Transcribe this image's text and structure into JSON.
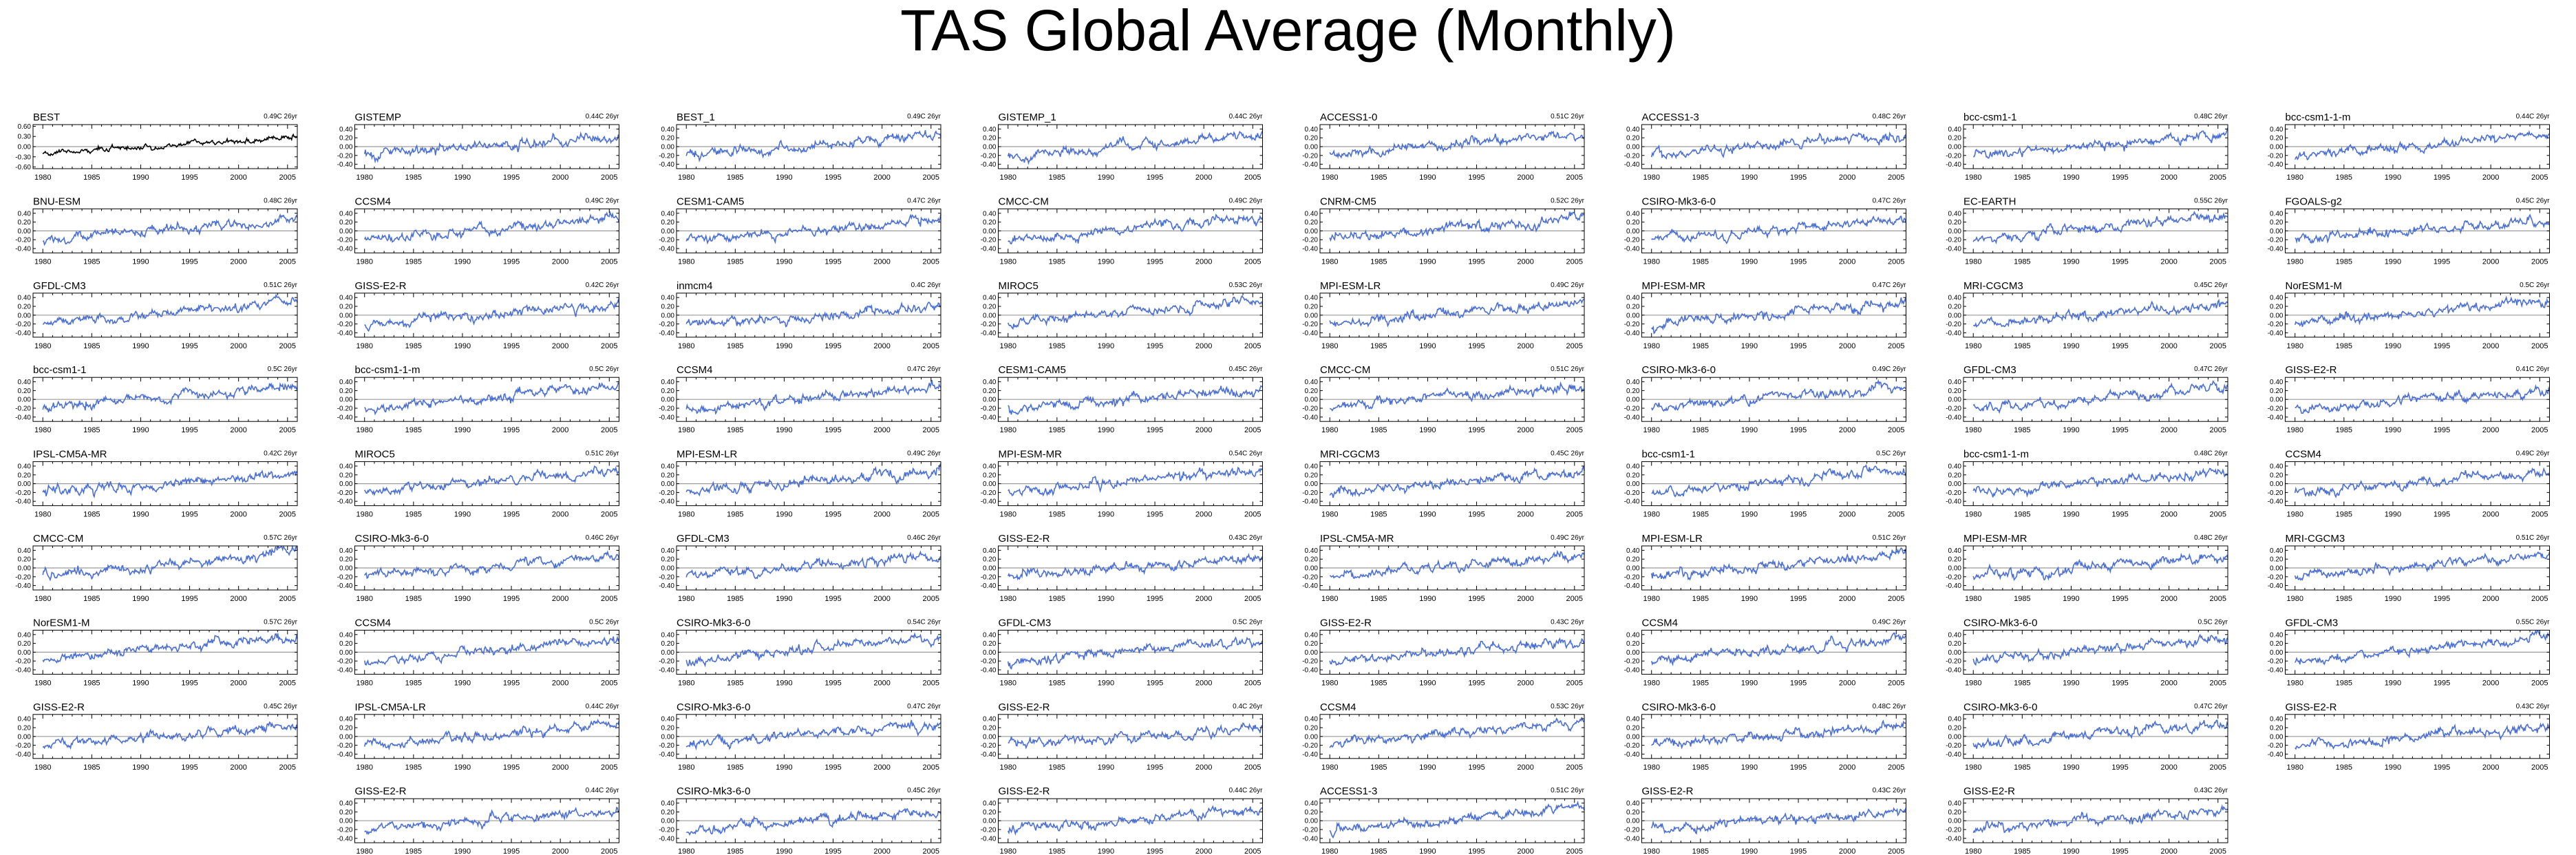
{
  "page": {
    "title": "TAS Global Average (Monthly)"
  },
  "style": {
    "obs_color": "#000000",
    "model_color": "#4c6fd3",
    "axis_color": "#000000",
    "zero_line_color": "#9a9a9a"
  },
  "chart_data": {
    "type": "line",
    "title": "TAS Global Average (Monthly)",
    "panel_layout": {
      "columns": 8
    },
    "x": {
      "ticks": [
        1980,
        1985,
        1990,
        1995,
        2000,
        2005
      ],
      "xlim": [
        1979,
        2006
      ]
    },
    "y": {
      "ticks": [
        0.4,
        0.2,
        0.0,
        -0.2,
        -0.4
      ],
      "tick_labels": [
        "0.40",
        "0.20",
        "0.00",
        "-0.20",
        "-0.40"
      ],
      "ylim": [
        -0.5,
        0.5
      ]
    },
    "panels": [
      {
        "name": "BEST",
        "trend": "0.49C 26yr",
        "kind": "obs",
        "y_tick_labels": [
          "0.60",
          "0.30",
          "0.00",
          "-0.30",
          "-0.60"
        ],
        "ylim": [
          -0.65,
          0.65
        ]
      },
      {
        "name": "GISTEMP",
        "trend": "0.44C 26yr",
        "kind": "model"
      },
      {
        "name": "BEST_1",
        "trend": "0.49C 26yr",
        "kind": "model"
      },
      {
        "name": "GISTEMP_1",
        "trend": "0.44C 26yr",
        "kind": "model"
      },
      {
        "name": "ACCESS1-0",
        "trend": "0.51C 26yr",
        "kind": "model"
      },
      {
        "name": "ACCESS1-3",
        "trend": "0.48C 26yr",
        "kind": "model"
      },
      {
        "name": "bcc-csm1-1",
        "trend": "0.48C 26yr",
        "kind": "model"
      },
      {
        "name": "bcc-csm1-1-m",
        "trend": "0.44C 26yr",
        "kind": "model"
      },
      {
        "name": "BNU-ESM",
        "trend": "0.48C 26yr",
        "kind": "model"
      },
      {
        "name": "CCSM4",
        "trend": "0.49C 26yr",
        "kind": "model"
      },
      {
        "name": "CESM1-CAM5",
        "trend": "0.47C 26yr",
        "kind": "model"
      },
      {
        "name": "CMCC-CM",
        "trend": "0.49C 26yr",
        "kind": "model"
      },
      {
        "name": "CNRM-CM5",
        "trend": "0.52C 26yr",
        "kind": "model"
      },
      {
        "name": "CSIRO-Mk3-6-0",
        "trend": "0.47C 26yr",
        "kind": "model"
      },
      {
        "name": "EC-EARTH",
        "trend": "0.55C 26yr",
        "kind": "model"
      },
      {
        "name": "FGOALS-g2",
        "trend": "0.45C 26yr",
        "kind": "model"
      },
      {
        "name": "GFDL-CM3",
        "trend": "0.51C 26yr",
        "kind": "model"
      },
      {
        "name": "GISS-E2-R",
        "trend": "0.42C 26yr",
        "kind": "model"
      },
      {
        "name": "inmcm4",
        "trend": "0.4C 26yr",
        "kind": "model"
      },
      {
        "name": "MIROC5",
        "trend": "0.53C 26yr",
        "kind": "model"
      },
      {
        "name": "MPI-ESM-LR",
        "trend": "0.49C 26yr",
        "kind": "model"
      },
      {
        "name": "MPI-ESM-MR",
        "trend": "0.47C 26yr",
        "kind": "model"
      },
      {
        "name": "MRI-CGCM3",
        "trend": "0.45C 26yr",
        "kind": "model"
      },
      {
        "name": "NorESM1-M",
        "trend": "0.5C 26yr",
        "kind": "model"
      },
      {
        "name": "bcc-csm1-1",
        "trend": "0.5C 26yr",
        "kind": "model"
      },
      {
        "name": "bcc-csm1-1-m",
        "trend": "0.5C 26yr",
        "kind": "model"
      },
      {
        "name": "CCSM4",
        "trend": "0.47C 26yr",
        "kind": "model"
      },
      {
        "name": "CESM1-CAM5",
        "trend": "0.45C 26yr",
        "kind": "model"
      },
      {
        "name": "CMCC-CM",
        "trend": "0.51C 26yr",
        "kind": "model"
      },
      {
        "name": "CSIRO-Mk3-6-0",
        "trend": "0.49C 26yr",
        "kind": "model"
      },
      {
        "name": "GFDL-CM3",
        "trend": "0.47C 26yr",
        "kind": "model"
      },
      {
        "name": "GISS-E2-R",
        "trend": "0.41C 26yr",
        "kind": "model"
      },
      {
        "name": "IPSL-CM5A-MR",
        "trend": "0.42C 26yr",
        "kind": "model"
      },
      {
        "name": "MIROC5",
        "trend": "0.51C 26yr",
        "kind": "model"
      },
      {
        "name": "MPI-ESM-LR",
        "trend": "0.49C 26yr",
        "kind": "model"
      },
      {
        "name": "MPI-ESM-MR",
        "trend": "0.54C 26yr",
        "kind": "model"
      },
      {
        "name": "MRI-CGCM3",
        "trend": "0.45C 26yr",
        "kind": "model"
      },
      {
        "name": "bcc-csm1-1",
        "trend": "0.5C 26yr",
        "kind": "model"
      },
      {
        "name": "bcc-csm1-1-m",
        "trend": "0.48C 26yr",
        "kind": "model"
      },
      {
        "name": "CCSM4",
        "trend": "0.49C 26yr",
        "kind": "model"
      },
      {
        "name": "CMCC-CM",
        "trend": "0.57C 26yr",
        "kind": "model"
      },
      {
        "name": "CSIRO-Mk3-6-0",
        "trend": "0.46C 26yr",
        "kind": "model"
      },
      {
        "name": "GFDL-CM3",
        "trend": "0.46C 26yr",
        "kind": "model"
      },
      {
        "name": "GISS-E2-R",
        "trend": "0.43C 26yr",
        "kind": "model"
      },
      {
        "name": "IPSL-CM5A-MR",
        "trend": "0.49C 26yr",
        "kind": "model"
      },
      {
        "name": "MPI-ESM-LR",
        "trend": "0.51C 26yr",
        "kind": "model"
      },
      {
        "name": "MPI-ESM-MR",
        "trend": "0.48C 26yr",
        "kind": "model"
      },
      {
        "name": "MRI-CGCM3",
        "trend": "0.51C 26yr",
        "kind": "model"
      },
      {
        "name": "NorESM1-M",
        "trend": "0.57C 26yr",
        "kind": "model"
      },
      {
        "name": "CCSM4",
        "trend": "0.5C 26yr",
        "kind": "model"
      },
      {
        "name": "CSIRO-Mk3-6-0",
        "trend": "0.54C 26yr",
        "kind": "model"
      },
      {
        "name": "GFDL-CM3",
        "trend": "0.5C 26yr",
        "kind": "model"
      },
      {
        "name": "GISS-E2-R",
        "trend": "0.43C 26yr",
        "kind": "model"
      },
      {
        "name": "CCSM4",
        "trend": "0.49C 26yr",
        "kind": "model"
      },
      {
        "name": "CSIRO-Mk3-6-0",
        "trend": "0.5C 26yr",
        "kind": "model"
      },
      {
        "name": "GFDL-CM3",
        "trend": "0.55C 26yr",
        "kind": "model"
      },
      {
        "name": "GISS-E2-R",
        "trend": "0.45C 26yr",
        "kind": "model"
      },
      {
        "name": "IPSL-CM5A-LR",
        "trend": "0.44C 26yr",
        "kind": "model"
      },
      {
        "name": "CSIRO-Mk3-6-0",
        "trend": "0.47C 26yr",
        "kind": "model"
      },
      {
        "name": "GISS-E2-R",
        "trend": "0.4C 26yr",
        "kind": "model"
      },
      {
        "name": "CCSM4",
        "trend": "0.53C 26yr",
        "kind": "model"
      },
      {
        "name": "CSIRO-Mk3-6-0",
        "trend": "0.48C 26yr",
        "kind": "model"
      },
      {
        "name": "CSIRO-Mk3-6-0",
        "trend": "0.47C 26yr",
        "kind": "model"
      },
      {
        "name": "GISS-E2-R",
        "trend": "0.43C 26yr",
        "kind": "model"
      },
      null,
      {
        "name": "GISS-E2-R",
        "trend": "0.44C 26yr",
        "kind": "model"
      },
      {
        "name": "CSIRO-Mk3-6-0",
        "trend": "0.45C 26yr",
        "kind": "model"
      },
      {
        "name": "GISS-E2-R",
        "trend": "0.44C 26yr",
        "kind": "model"
      },
      {
        "name": "ACCESS1-3",
        "trend": "0.51C 26yr",
        "kind": "model"
      },
      {
        "name": "GISS-E2-R",
        "trend": "0.43C 26yr",
        "kind": "model"
      },
      {
        "name": "GISS-E2-R",
        "trend": "0.43C 26yr",
        "kind": "model"
      },
      null
    ]
  }
}
